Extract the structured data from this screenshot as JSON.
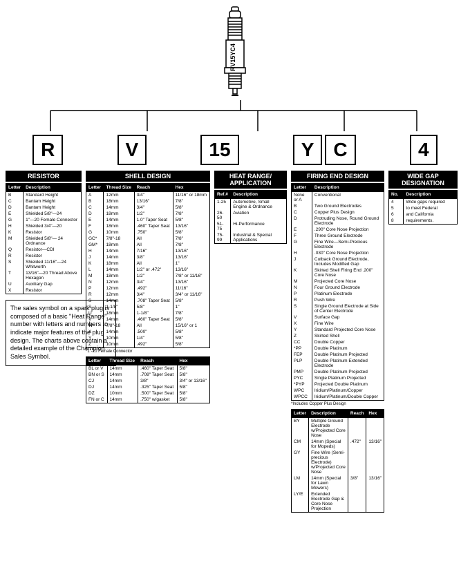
{
  "plug_label": "RV15YC4",
  "codes": {
    "r": "R",
    "v": "V",
    "n15": "15",
    "y": "Y",
    "c": "C",
    "n4": "4"
  },
  "titles": {
    "resistor": "RESISTOR",
    "shell": "SHELL DESIGN",
    "heat": "HEAT RANGE/\nAPPLICATION",
    "firing": "FIRING END DESIGN",
    "gap": "WIDE GAP\nDESIGNATION"
  },
  "resistor": {
    "cols": [
      "Letter",
      "Description"
    ],
    "rows": [
      [
        "B",
        "Standard Height"
      ],
      [
        "C",
        "Bantam Height"
      ],
      [
        "D",
        "Bantam Height"
      ],
      [
        "E",
        "Shielded 5/8\"—24"
      ],
      [
        "G",
        "1\"—20 Female Connector"
      ],
      [
        "H",
        "Shielded 3/4\"—20"
      ],
      [
        "K",
        "Resistor"
      ],
      [
        "M",
        "Shielded 5/8\"— 24 Ordnance"
      ],
      [
        "Q",
        "Resistor—CDI"
      ],
      [
        "R",
        "Resistor"
      ],
      [
        "S",
        "Shielded 11/16\"—24 Whitworth"
      ],
      [
        "T",
        "13/16\"—20 Thread Above Hexagon"
      ],
      [
        "U",
        "Auxiliary Gap"
      ],
      [
        "X",
        "Resistor"
      ]
    ]
  },
  "shell1": {
    "cols": [
      "Letter",
      "Thread Size",
      "Reach",
      "Hex"
    ],
    "rows": [
      [
        "A",
        "12mm",
        "3/4\"",
        "11/16\" or 18mm"
      ],
      [
        "B",
        "18mm",
        "13/16\"",
        "7/8\""
      ],
      [
        "C",
        "14mm",
        "3/4\"",
        "5/8\""
      ],
      [
        "D",
        "18mm",
        "1/2\"",
        "7/8\""
      ],
      [
        "E",
        "14mm",
        "1.0\" Taper Seat",
        "5/8\""
      ],
      [
        "F",
        "18mm",
        ".460\" Taper Seat",
        "13/16\""
      ],
      [
        "G",
        "10mm",
        ".750\"",
        "5/8\""
      ],
      [
        "GC*",
        "7/8\"-18",
        "All",
        "7/8\""
      ],
      [
        "GM*",
        "18mm",
        "All",
        "7/8\""
      ],
      [
        "H",
        "14mm",
        "7/16\"",
        "13/16\""
      ],
      [
        "J",
        "14mm",
        "3/8\"",
        "13/16\""
      ],
      [
        "K",
        "18mm",
        "All",
        "1\""
      ],
      [
        "L",
        "14mm",
        "1/2\" or .472\"",
        "13/16\""
      ],
      [
        "M",
        "18mm",
        "1/2\"",
        "7/8\" or 11/16\""
      ],
      [
        "N",
        "12mm",
        "3/4\"",
        "13/16\""
      ],
      [
        "P",
        "12mm",
        ".492\"",
        "11/16\""
      ],
      [
        "R",
        "12mm",
        "3/4\"",
        "3/4\" or 11/16\""
      ],
      [
        "S",
        "14mm",
        ".708\" Taper Seat",
        "5/8\""
      ],
      [
        "S",
        "1-1/8\"",
        "5/8\"",
        "1\""
      ],
      [
        "U",
        "18mm",
        "1-1/8\"",
        "7/8\""
      ],
      [
        "V",
        "14mm",
        ".460\" Taper Seat",
        "5/8\""
      ],
      [
        "W",
        "7/8\"-18",
        "All",
        "15/16\" or 1"
      ],
      [
        "X",
        "14mm",
        ".500\"",
        "5/8\""
      ],
      [
        "Y",
        "10mm",
        "1/4\"",
        "5/8\""
      ],
      [
        "Z",
        "10mm",
        ".492\"",
        "5/8\""
      ]
    ],
    "footnote": "*1\"-20 Female Connector"
  },
  "shell2": {
    "cols": [
      "Letter",
      "Thread Size",
      "Reach",
      "Hex"
    ],
    "rows": [
      [
        "BL or V",
        "14mm",
        ".460\" Taper Seat",
        "5/8\""
      ],
      [
        "BN or S",
        "14mm",
        ".708\" Taper Seat",
        "5/8\""
      ],
      [
        "CJ",
        "14mm",
        "3/8\"",
        "3/4\" or 13/16\""
      ],
      [
        "DJ",
        "14mm",
        ".325\" Taper Seat",
        "5/8\""
      ],
      [
        "DZ",
        "10mm",
        ".500\" Taper Seat",
        "5/8\""
      ],
      [
        "FN or C",
        "14mm",
        ".750\" w/gasket",
        "5/8\""
      ]
    ]
  },
  "heat": {
    "cols": [
      "Ref.#",
      "Description"
    ],
    "rows": [
      [
        "1-25",
        "Automotive, Small Engine & Ordnance"
      ],
      [
        "26-50",
        "Aviation"
      ],
      [
        "51-75",
        "Hi-Performance"
      ],
      [
        "75-99",
        "Industrial & Special Applications"
      ]
    ]
  },
  "firing": {
    "cols": [
      "Letter",
      "Description"
    ],
    "rows": [
      [
        "None or A",
        "Conventional"
      ],
      [
        "B",
        "Two Ground Electrodes"
      ],
      [
        "C",
        "Copper Plus Design"
      ],
      [
        "D",
        "Protruding Nose, Round Ground Electrode"
      ],
      [
        "E",
        ".290\" Core Nose Projection"
      ],
      [
        "F",
        "Three Ground Electrode"
      ],
      [
        "G",
        "Fine Wire—Semi-Precious Electrode"
      ],
      [
        "H",
        ".030\" Core Nose Projection"
      ],
      [
        "J",
        "Cutback Ground Electrode, Includes Modified Gap"
      ],
      [
        "K",
        "Skirted Shell Firing End .200\" Core Nose"
      ],
      [
        "M",
        "Projected Core Nose"
      ],
      [
        "N",
        "Four Ground Electrode"
      ],
      [
        "P",
        "Platinum Electrode"
      ],
      [
        "R",
        "Push Wire"
      ],
      [
        "S",
        "Single Ground Electrode at Side of Center Electrode"
      ],
      [
        "V",
        "Surface Gap"
      ],
      [
        "X",
        "Fine Wire"
      ],
      [
        "Y",
        "Standard Projected Core Nose"
      ],
      [
        "Z",
        "Skirted Shell"
      ],
      [
        "CC",
        "Double Copper"
      ],
      [
        "*PP",
        "Double Platinum"
      ],
      [
        "FEP",
        "Double Platinum Projected"
      ],
      [
        "PLP",
        "Double Platinum Extended Electrode"
      ],
      [
        "PMP",
        "Double Platinum Projected"
      ],
      [
        "PYC",
        "Single Platinum Projected"
      ],
      [
        "*PYP",
        "Projected Double Platinum"
      ],
      [
        "WPC",
        "Iridium/Platinum/Copper"
      ],
      [
        "WPCC",
        "Iridium/Platinum/Double Copper"
      ]
    ],
    "footnote": "*Includes Copper Plus Design"
  },
  "firing2": {
    "cols": [
      "Letter",
      "Description",
      "Reach",
      "Hex"
    ],
    "rows": [
      [
        "BY",
        "Multiple Ground Electrode w/Projected Core Nose",
        "",
        ""
      ],
      [
        "CM",
        "14mm (Special for Mopeds)",
        ".472\"",
        "13/16\""
      ],
      [
        "GY",
        "Fine Wire (Semi-precious Electrode) w/Projected Core Nose",
        "",
        ""
      ],
      [
        "LM",
        "14mm (Special for Lawn Mowers)",
        "3/8\"",
        "13/16\""
      ],
      [
        "LY/E",
        "Extended Electrode Gap & Core Nose Projection",
        "",
        ""
      ]
    ]
  },
  "gap": {
    "cols": [
      "No.",
      "Description"
    ],
    "rows": [
      [
        "4",
        "Wide gaps required"
      ],
      [
        "5",
        "to meet Federal"
      ],
      [
        "6",
        "and California"
      ],
      [
        "8",
        "requirements."
      ]
    ]
  },
  "desc": "The sales symbol on a spark plug is composed of a basic \"Heat Range\" number with letters and numbers to indicate major features of the plug design. The charts above contain a detailed example of the Champion Sales Symbol."
}
